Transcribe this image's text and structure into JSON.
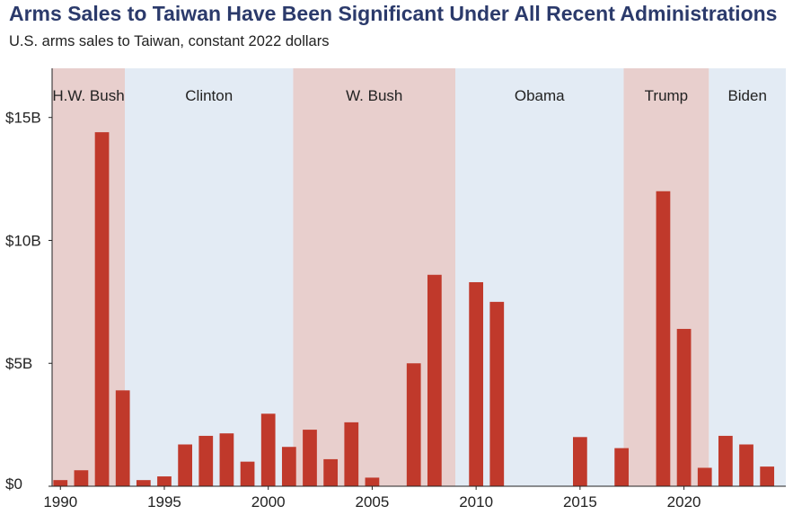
{
  "chart_data": {
    "type": "bar",
    "title": "Arms Sales to Taiwan Have Been Significant Under All Recent Administrations",
    "subtitle": "U.S. arms sales to Taiwan, constant 2022 dollars",
    "xlabel": "",
    "ylabel": "",
    "xlim": [
      1989.6,
      2024.9
    ],
    "ylim": [
      0,
      17
    ],
    "x_ticks": [
      {
        "value": 1990,
        "label": "1990"
      },
      {
        "value": 1995,
        "label": "1995"
      },
      {
        "value": 2000,
        "label": "2000"
      },
      {
        "value": 2005,
        "label": "2005"
      },
      {
        "value": 2010,
        "label": "2010"
      },
      {
        "value": 2015,
        "label": "2015"
      },
      {
        "value": 2020,
        "label": "2020"
      }
    ],
    "y_ticks": [
      {
        "value": 0,
        "label": "$0"
      },
      {
        "value": 5,
        "label": "$5B"
      },
      {
        "value": 10,
        "label": "$10B"
      },
      {
        "value": 15,
        "label": "$15B"
      }
    ],
    "administrations": [
      {
        "name": "H.W. Bush",
        "start": 1989.6,
        "end": 1993.1,
        "color": "#e8cfcd"
      },
      {
        "name": "Clinton",
        "start": 1993.1,
        "end": 2001.2,
        "color": "#e3ebf4"
      },
      {
        "name": "W. Bush",
        "start": 2001.2,
        "end": 2009.0,
        "color": "#e8cfcd"
      },
      {
        "name": "Obama",
        "start": 2009.0,
        "end": 2017.1,
        "color": "#e3ebf4"
      },
      {
        "name": "Trump",
        "start": 2017.1,
        "end": 2021.2,
        "color": "#e8cfcd"
      },
      {
        "name": "Biden",
        "start": 2021.2,
        "end": 2024.9,
        "color": "#e3ebf4"
      }
    ],
    "bar_color": "#c0392b",
    "series": [
      {
        "name": "U.S. arms sales to Taiwan",
        "data": [
          {
            "x": 1990,
            "y": 0.25
          },
          {
            "x": 1991,
            "y": 0.65
          },
          {
            "x": 1992,
            "y": 14.4
          },
          {
            "x": 1993,
            "y": 3.9
          },
          {
            "x": 1994,
            "y": 0.25
          },
          {
            "x": 1995,
            "y": 0.4
          },
          {
            "x": 1996,
            "y": 1.7
          },
          {
            "x": 1997,
            "y": 2.05
          },
          {
            "x": 1998,
            "y": 2.15
          },
          {
            "x": 1999,
            "y": 1.0
          },
          {
            "x": 2000,
            "y": 2.95
          },
          {
            "x": 2001,
            "y": 1.6
          },
          {
            "x": 2002,
            "y": 2.3
          },
          {
            "x": 2003,
            "y": 1.1
          },
          {
            "x": 2004,
            "y": 2.6
          },
          {
            "x": 2005,
            "y": 0.35
          },
          {
            "x": 2007,
            "y": 5.0
          },
          {
            "x": 2008,
            "y": 8.6
          },
          {
            "x": 2010,
            "y": 8.3
          },
          {
            "x": 2011,
            "y": 7.5
          },
          {
            "x": 2015,
            "y": 2.0
          },
          {
            "x": 2017,
            "y": 1.55
          },
          {
            "x": 2019,
            "y": 12.0
          },
          {
            "x": 2020,
            "y": 6.4
          },
          {
            "x": 2021,
            "y": 0.75
          },
          {
            "x": 2022,
            "y": 2.05
          },
          {
            "x": 2023,
            "y": 1.7
          },
          {
            "x": 2024,
            "y": 0.8
          }
        ]
      }
    ]
  }
}
